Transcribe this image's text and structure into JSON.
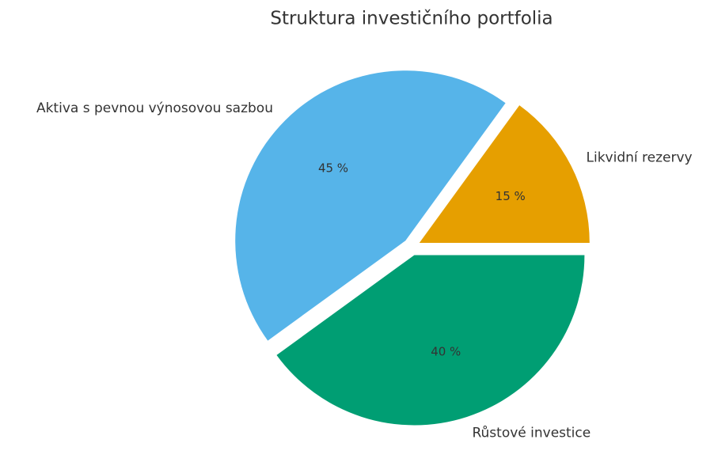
{
  "chart_data": {
    "type": "pie",
    "title": "Struktura investičního portfolia",
    "categories": [
      "Likvidní rezervy",
      "Aktiva s pevnou výnosovou sazbou",
      "Růstové investice"
    ],
    "values": [
      15,
      45,
      40
    ],
    "value_labels": [
      "15 %",
      "45 %",
      "40 %"
    ],
    "colors": [
      "#e69f00",
      "#56b4e9",
      "#009e73"
    ]
  }
}
